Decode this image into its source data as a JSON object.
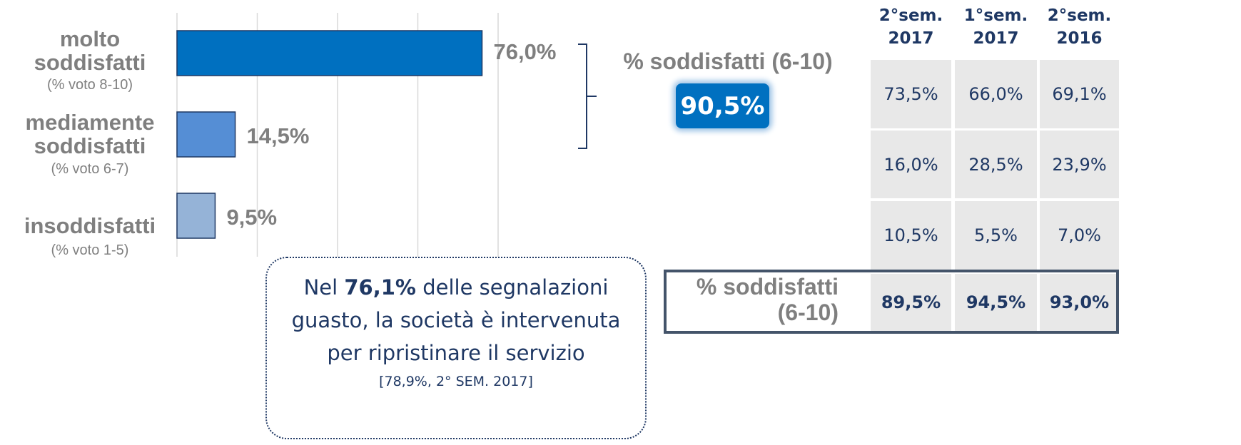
{
  "chart_data": {
    "type": "barh",
    "categories": [
      "molto soddisfatti",
      "mediamente soddisfatti",
      "insoddisfatti"
    ],
    "sublabels": [
      "(% voto 8-10)",
      "(% voto 6-7)",
      "(% voto 1-5)"
    ],
    "values": [
      76.0,
      14.5,
      9.5
    ],
    "value_labels": [
      "76,0%",
      "14,5%",
      "9,5%"
    ],
    "colors": [
      "#0070c0",
      "#558ed5",
      "#95b3d7"
    ],
    "xlim": [
      0,
      80
    ],
    "xticks": [
      0,
      20,
      40,
      60,
      80
    ],
    "grid": true
  },
  "annotation": {
    "label": "% soddisfatti (6-10)",
    "value": "90,5%"
  },
  "table": {
    "headers": [
      "2°sem. 2017",
      "1°sem. 2017",
      "2°sem. 2016"
    ],
    "rows": [
      [
        "73,5%",
        "66,0%",
        "69,1%"
      ],
      [
        "16,0%",
        "28,5%",
        "23,9%"
      ],
      [
        "10,5%",
        "5,5%",
        "7,0%"
      ]
    ],
    "total": {
      "label": "% soddisfatti (6-10)",
      "values": [
        "89,5%",
        "94,5%",
        "93,0%"
      ]
    }
  },
  "callout": {
    "parts": [
      "Nel ",
      "76,1%",
      " delle segnalazioni guasto, la società è intervenuta per ripristinare il servizio"
    ],
    "note": "[78,9%, 2° SEM. 2017]"
  }
}
